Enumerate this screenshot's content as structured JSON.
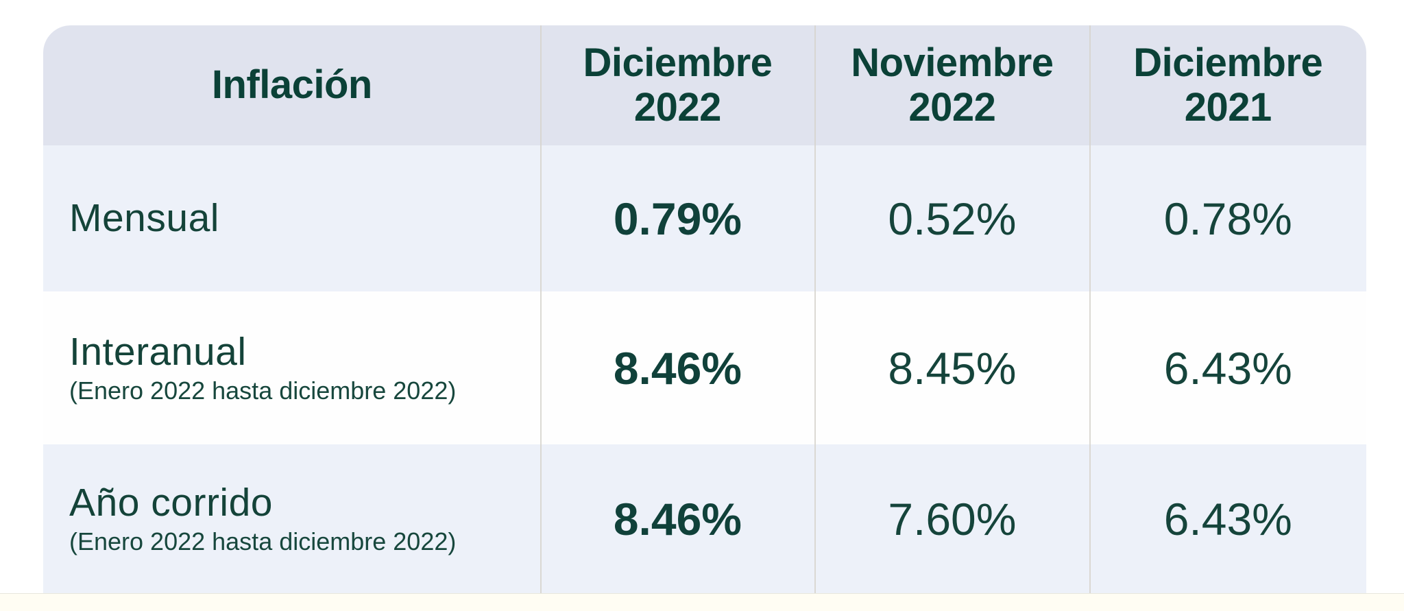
{
  "table": {
    "title": "Inflación",
    "header": [
      "Inflación",
      "Diciembre\n2022",
      "Noviembre\n2022",
      "Diciembre\n2021"
    ],
    "rows": [
      {
        "label": "Mensual",
        "note": "",
        "values": [
          "0.79%",
          "0.52%",
          "0.78%"
        ]
      },
      {
        "label": "Interanual",
        "note": "(Enero 2022 hasta diciembre 2022)",
        "values": [
          "8.46%",
          "8.45%",
          "6.43%"
        ]
      },
      {
        "label": "Año corrido",
        "note": "(Enero 2022 hasta diciembre 2022)",
        "values": [
          "8.46%",
          "7.60%",
          "6.43%"
        ]
      }
    ],
    "colors": {
      "header_bg": "#e0e3ee",
      "row_alt_bg": "#edf1f9",
      "row_white_bg": "#fefefe",
      "text_dark_green": "#0b4137",
      "text_body_green": "#15443b",
      "divider": "#d6d3cc",
      "page_bottom_strip": "#fffdf3"
    }
  },
  "chart_data": {
    "type": "table",
    "title": "Inflación",
    "columns": [
      "Inflación",
      "Diciembre 2022",
      "Noviembre 2022",
      "Diciembre 2021"
    ],
    "row_labels": [
      "Mensual",
      "Interanual (Enero 2022 hasta diciembre 2022)",
      "Año corrido (Enero 2022 hasta diciembre 2022)"
    ],
    "series": [
      {
        "name": "Diciembre 2022",
        "values": [
          0.79,
          8.46,
          8.46
        ]
      },
      {
        "name": "Noviembre 2022",
        "values": [
          0.52,
          8.45,
          7.6
        ]
      },
      {
        "name": "Diciembre 2021",
        "values": [
          0.78,
          6.43,
          6.43
        ]
      }
    ],
    "unit": "percent",
    "emphasized_column": "Diciembre 2022"
  }
}
